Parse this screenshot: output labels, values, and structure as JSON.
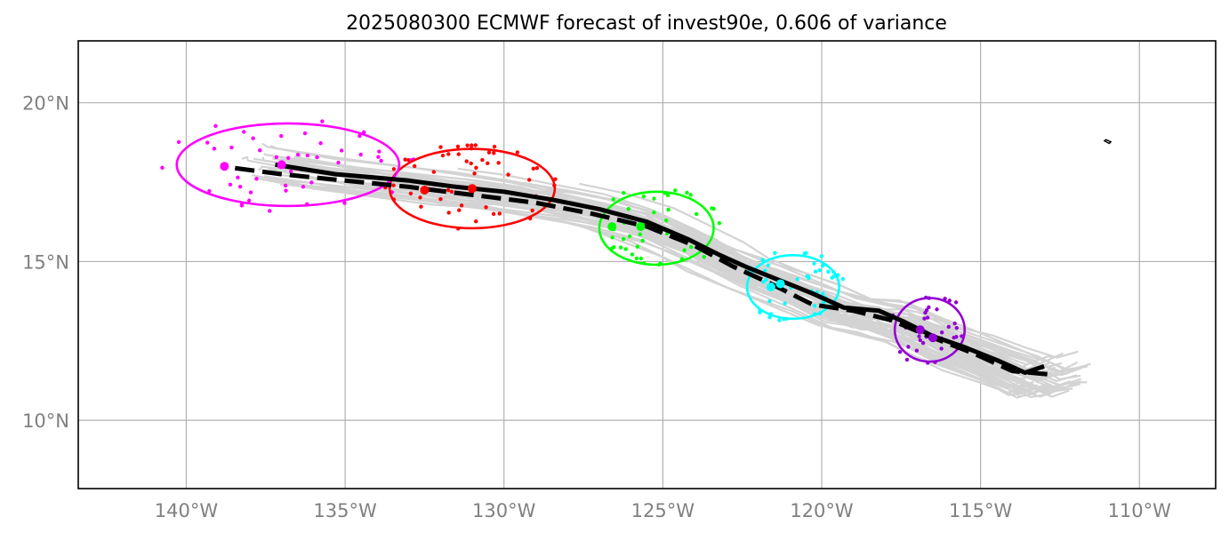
{
  "title": "2025080300 ECMWF forecast of invest90e, 0.606 of variance",
  "map": {
    "lon_range": [
      -143.4,
      -107.6
    ],
    "lat_range": [
      7.85,
      21.95
    ],
    "x_ticks": [
      {
        "lon": -140,
        "label": "140°W"
      },
      {
        "lon": -135,
        "label": "135°W"
      },
      {
        "lon": -130,
        "label": "130°W"
      },
      {
        "lon": -125,
        "label": "125°W"
      },
      {
        "lon": -120,
        "label": "120°W"
      },
      {
        "lon": -115,
        "label": "115°W"
      },
      {
        "lon": -110,
        "label": "110°W"
      }
    ],
    "y_ticks": [
      {
        "lat": 20,
        "label": "20°N"
      },
      {
        "lat": 15,
        "label": "15°N"
      },
      {
        "lat": 10,
        "label": "10°N"
      }
    ],
    "grid": true,
    "colors": {
      "ensemble": "#d3d3d3",
      "mean_track": "#000000",
      "deterministic_track": "#000000",
      "grid": "#b0b0b0",
      "tick_label": "#808080"
    },
    "ensemble_seed": 90,
    "ensemble_member_count": 50,
    "mean_track": [
      [
        -113.0,
        11.7
      ],
      [
        -113.6,
        11.5
      ],
      [
        -114.5,
        11.9
      ],
      [
        -115.5,
        12.3
      ],
      [
        -116.5,
        12.65
      ],
      [
        -117.4,
        13.1
      ],
      [
        -118.2,
        13.45
      ],
      [
        -119.3,
        13.55
      ],
      [
        -120.3,
        14.0
      ],
      [
        -121.3,
        14.4
      ],
      [
        -122.3,
        14.8
      ],
      [
        -123.2,
        15.2
      ],
      [
        -124.2,
        15.7
      ],
      [
        -125.5,
        16.25
      ],
      [
        -127.0,
        16.65
      ],
      [
        -128.5,
        16.95
      ],
      [
        -130.0,
        17.2
      ],
      [
        -131.5,
        17.35
      ],
      [
        -133.0,
        17.55
      ],
      [
        -135.3,
        17.75
      ],
      [
        -137.2,
        18.05
      ]
    ],
    "deterministic_track": [
      [
        -112.9,
        11.45
      ],
      [
        -114.0,
        11.55
      ],
      [
        -115.2,
        12.1
      ],
      [
        -116.5,
        12.6
      ],
      [
        -117.8,
        13.15
      ],
      [
        -119.0,
        13.45
      ],
      [
        -120.3,
        13.65
      ],
      [
        -121.6,
        14.3
      ],
      [
        -122.8,
        14.85
      ],
      [
        -124.0,
        15.5
      ],
      [
        -125.5,
        16.1
      ],
      [
        -127.2,
        16.5
      ],
      [
        -129.0,
        16.85
      ],
      [
        -131.0,
        17.1
      ],
      [
        -133.0,
        17.35
      ],
      [
        -135.0,
        17.55
      ],
      [
        -137.0,
        17.75
      ],
      [
        -138.9,
        18.0
      ]
    ],
    "uncertainty_groups": [
      {
        "color": "#9400d3",
        "ellipse": {
          "lon": -116.6,
          "lat": 12.85,
          "rx": 1.1,
          "ry": 1.0
        },
        "mean_marker": [
          -116.9,
          12.85
        ],
        "det_marker": [
          -116.5,
          12.6
        ],
        "point_count": 36,
        "point_seed": 5
      },
      {
        "color": "#00ffff",
        "ellipse": {
          "lon": -120.9,
          "lat": 14.2,
          "rx": 1.45,
          "ry": 1.0
        },
        "mean_marker": [
          -121.6,
          14.2
        ],
        "det_marker": [
          -121.3,
          14.3
        ],
        "point_count": 45,
        "point_seed": 4
      },
      {
        "color": "#00ff00",
        "ellipse": {
          "lon": -125.2,
          "lat": 16.05,
          "rx": 1.8,
          "ry": 1.15
        },
        "mean_marker": [
          -125.7,
          16.1
        ],
        "det_marker": [
          -126.6,
          16.1
        ],
        "point_count": 42,
        "point_seed": 3
      },
      {
        "color": "#ff0000",
        "ellipse": {
          "lon": -131.0,
          "lat": 17.3,
          "rx": 2.6,
          "ry": 1.25
        },
        "mean_marker": [
          -131.0,
          17.3
        ],
        "det_marker": [
          -132.5,
          17.25
        ],
        "point_count": 55,
        "point_seed": 2
      },
      {
        "color": "#ff00ff",
        "ellipse": {
          "lon": -136.8,
          "lat": 18.05,
          "rx": 3.5,
          "ry": 1.3
        },
        "mean_marker": [
          -137.0,
          18.05
        ],
        "det_marker": [
          -138.8,
          18.0
        ],
        "point_count": 48,
        "point_seed": 1
      }
    ],
    "island_outline": [
      [
        -111.1,
        18.8
      ],
      [
        -110.95,
        18.72
      ],
      [
        -110.9,
        18.77
      ],
      [
        -111.05,
        18.84
      ]
    ]
  }
}
